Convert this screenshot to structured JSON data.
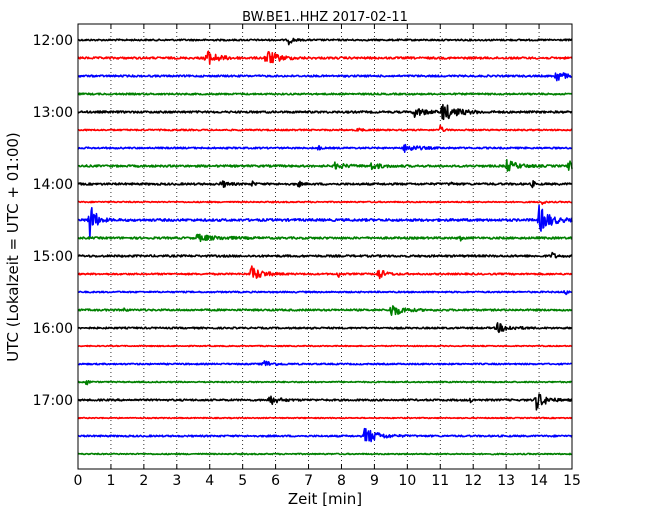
{
  "chart_data": {
    "type": "line",
    "title": "BW.BE1..HHZ 2017-02-11",
    "xlabel": "Zeit  [min]",
    "ylabel": "UTC (Lokalzeit = UTC + 01:00)",
    "xlim": [
      0,
      15
    ],
    "x_ticks": [
      0,
      1,
      2,
      3,
      4,
      5,
      6,
      7,
      8,
      9,
      10,
      11,
      12,
      13,
      14,
      15
    ],
    "x_grid": true,
    "y_ticks": [
      "12:00",
      "13:00",
      "14:00",
      "15:00",
      "16:00",
      "17:00"
    ],
    "row_interval_min": 15,
    "colors": [
      "#000000",
      "#ff0000",
      "#0000ff",
      "#008000"
    ],
    "traces": [
      {
        "start": "12:00",
        "color": "#000000",
        "noise": 0.8,
        "events": [
          [
            6.4,
            4,
            0.12
          ]
        ]
      },
      {
        "start": "12:15",
        "color": "#ff0000",
        "noise": 1.0,
        "events": [
          [
            3.85,
            9,
            0.3
          ],
          [
            5.7,
            9,
            0.3
          ]
        ]
      },
      {
        "start": "12:30",
        "color": "#0000ff",
        "noise": 0.9,
        "events": [
          [
            14.5,
            6,
            0.25
          ]
        ]
      },
      {
        "start": "12:45",
        "color": "#008000",
        "noise": 0.8,
        "events": []
      },
      {
        "start": "13:00",
        "color": "#000000",
        "noise": 1.0,
        "events": [
          [
            10.2,
            5,
            0.3
          ],
          [
            11.05,
            9,
            0.4
          ]
        ]
      },
      {
        "start": "13:15",
        "color": "#ff0000",
        "noise": 0.7,
        "events": [
          [
            8.5,
            3,
            0.08
          ],
          [
            11.0,
            4,
            0.08
          ]
        ]
      },
      {
        "start": "13:30",
        "color": "#0000ff",
        "noise": 0.8,
        "events": [
          [
            9.9,
            4,
            0.35
          ],
          [
            7.3,
            3,
            0.05
          ]
        ]
      },
      {
        "start": "13:45",
        "color": "#008000",
        "noise": 1.0,
        "events": [
          [
            7.8,
            3,
            0.3
          ],
          [
            8.9,
            3,
            0.3
          ],
          [
            13.0,
            6,
            0.3
          ],
          [
            14.9,
            5,
            0.2
          ]
        ]
      },
      {
        "start": "14:00",
        "color": "#000000",
        "noise": 1.0,
        "events": [
          [
            4.35,
            4,
            0.15
          ],
          [
            5.3,
            3,
            0.05
          ],
          [
            6.7,
            4,
            0.05
          ],
          [
            11.3,
            3,
            0.05
          ],
          [
            13.8,
            4,
            0.05
          ]
        ]
      },
      {
        "start": "14:15",
        "color": "#ff0000",
        "noise": 0.6,
        "events": [
          [
            14.1,
            3,
            0.05
          ]
        ]
      },
      {
        "start": "14:30",
        "color": "#0000ff",
        "noise": 1.2,
        "events": [
          [
            0.35,
            22,
            0.15
          ],
          [
            14.0,
            14,
            0.3
          ]
        ]
      },
      {
        "start": "14:45",
        "color": "#008000",
        "noise": 1.0,
        "events": [
          [
            3.6,
            3,
            0.6
          ],
          [
            11.6,
            3,
            0.05
          ]
        ]
      },
      {
        "start": "15:00",
        "color": "#000000",
        "noise": 1.0,
        "events": [
          [
            14.4,
            4,
            0.08
          ]
        ]
      },
      {
        "start": "15:15",
        "color": "#ff0000",
        "noise": 0.8,
        "events": [
          [
            5.25,
            8,
            0.3
          ],
          [
            7.9,
            4,
            0.05
          ],
          [
            9.1,
            6,
            0.2
          ]
        ]
      },
      {
        "start": "15:30",
        "color": "#0000ff",
        "noise": 0.7,
        "events": [
          [
            14.8,
            4,
            0.05
          ]
        ]
      },
      {
        "start": "15:45",
        "color": "#008000",
        "noise": 0.9,
        "events": [
          [
            9.5,
            7,
            0.3
          ],
          [
            1.4,
            2,
            0.05
          ]
        ]
      },
      {
        "start": "16:00",
        "color": "#000000",
        "noise": 0.8,
        "events": [
          [
            12.7,
            5,
            0.35
          ],
          [
            7.1,
            2,
            0.05
          ]
        ]
      },
      {
        "start": "16:15",
        "color": "#ff0000",
        "noise": 0.5,
        "events": []
      },
      {
        "start": "16:30",
        "color": "#0000ff",
        "noise": 0.7,
        "events": [
          [
            5.6,
            4,
            0.25
          ]
        ]
      },
      {
        "start": "16:45",
        "color": "#008000",
        "noise": 0.6,
        "events": [
          [
            0.25,
            5,
            0.05
          ]
        ]
      },
      {
        "start": "17:00",
        "color": "#000000",
        "noise": 0.9,
        "events": [
          [
            5.8,
            5,
            0.25
          ],
          [
            11.9,
            3,
            0.05
          ],
          [
            13.9,
            10,
            0.25
          ]
        ]
      },
      {
        "start": "17:15",
        "color": "#ff0000",
        "noise": 0.5,
        "events": []
      },
      {
        "start": "17:30",
        "color": "#0000ff",
        "noise": 0.8,
        "events": [
          [
            8.7,
            9,
            0.35
          ]
        ]
      },
      {
        "start": "17:45",
        "color": "#008000",
        "noise": 0.6,
        "events": []
      }
    ]
  }
}
